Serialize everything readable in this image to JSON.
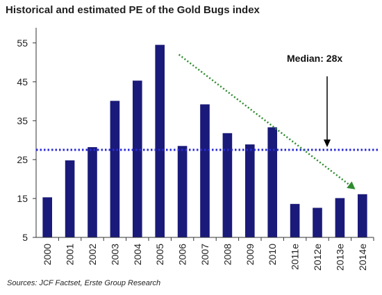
{
  "chart_data": {
    "type": "bar",
    "title": "Historical and estimated PE of the Gold Bugs index",
    "source": "Sources: JCF Factset, Erste Group Research",
    "categories": [
      "2000",
      "2001",
      "2002",
      "2003",
      "2004",
      "2005",
      "2006",
      "2007",
      "2008",
      "2009",
      "2010",
      "2011e",
      "2012e",
      "2013e",
      "2014e"
    ],
    "values": [
      15.3,
      24.8,
      28.2,
      40.1,
      45.3,
      54.5,
      28.5,
      39.2,
      31.8,
      28.9,
      33.3,
      13.6,
      12.6,
      15.1,
      16.1
    ],
    "ylim": [
      5,
      58
    ],
    "yticks": [
      5,
      15,
      25,
      35,
      45,
      55
    ],
    "xlabel": "",
    "ylabel": "",
    "grid": false,
    "median": {
      "value": 27.5,
      "label": "Median: 28x"
    },
    "trend_arrow": {
      "from": {
        "category": "2006",
        "value": 52
      },
      "to": {
        "category": "2014e",
        "value": 18
      }
    },
    "colors": {
      "bar": "#1a1a7a",
      "median_line": "#2b2bd6",
      "trend": "#2e8b2e",
      "axis": "#333333"
    }
  }
}
